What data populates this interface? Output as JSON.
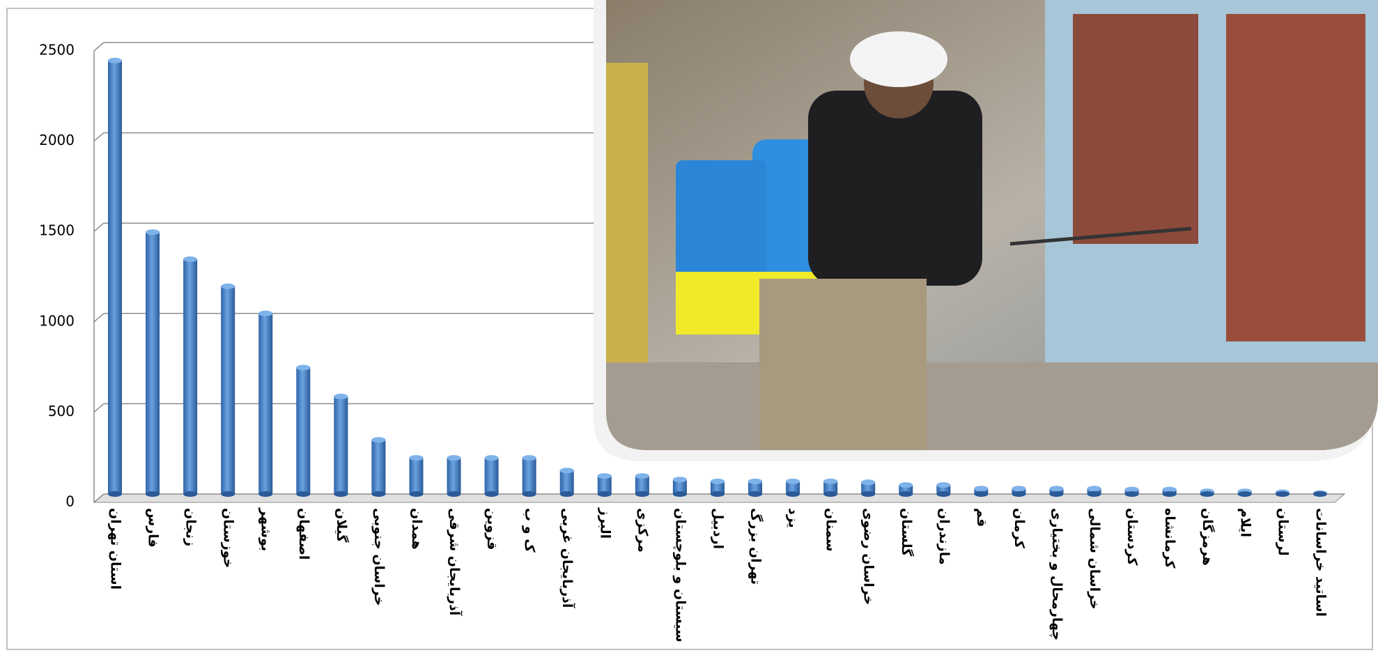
{
  "chart_data": {
    "type": "bar",
    "categories": [
      "استان تهران",
      "فارس",
      "زنجان",
      "خوزستان",
      "بوشهر",
      "اصفهان",
      "گیلان",
      "خراسان جنوبی",
      "همدان",
      "آذربایجان شرقی",
      "قزوین",
      "ک و ب",
      "آذربایجان غربی",
      "البرز",
      "مرکزی",
      "سیستان و بلوچستان",
      "اردبیل",
      "تهران بزرگ",
      "یزد",
      "سمنان",
      "خراسان رضوی",
      "گلستان",
      "مازندران",
      "قم",
      "کرمان",
      "چهارمحال و بختیاری",
      "خراسان شمالی",
      "کردستان",
      "کرمانشاه",
      "هرمزگان",
      "ایلام",
      "لرستان",
      "اساتید خراسانات"
    ],
    "values": [
      2400,
      1450,
      1300,
      1150,
      1000,
      700,
      540,
      300,
      200,
      200,
      200,
      200,
      130,
      100,
      100,
      80,
      70,
      70,
      70,
      70,
      65,
      50,
      50,
      30,
      30,
      30,
      30,
      25,
      25,
      15,
      15,
      10,
      5
    ],
    "color": "#4a86c8",
    "ylim": [
      0,
      2500
    ],
    "yticks": [
      0,
      500,
      1000,
      1500,
      2000,
      2500
    ],
    "grid": true
  }
}
